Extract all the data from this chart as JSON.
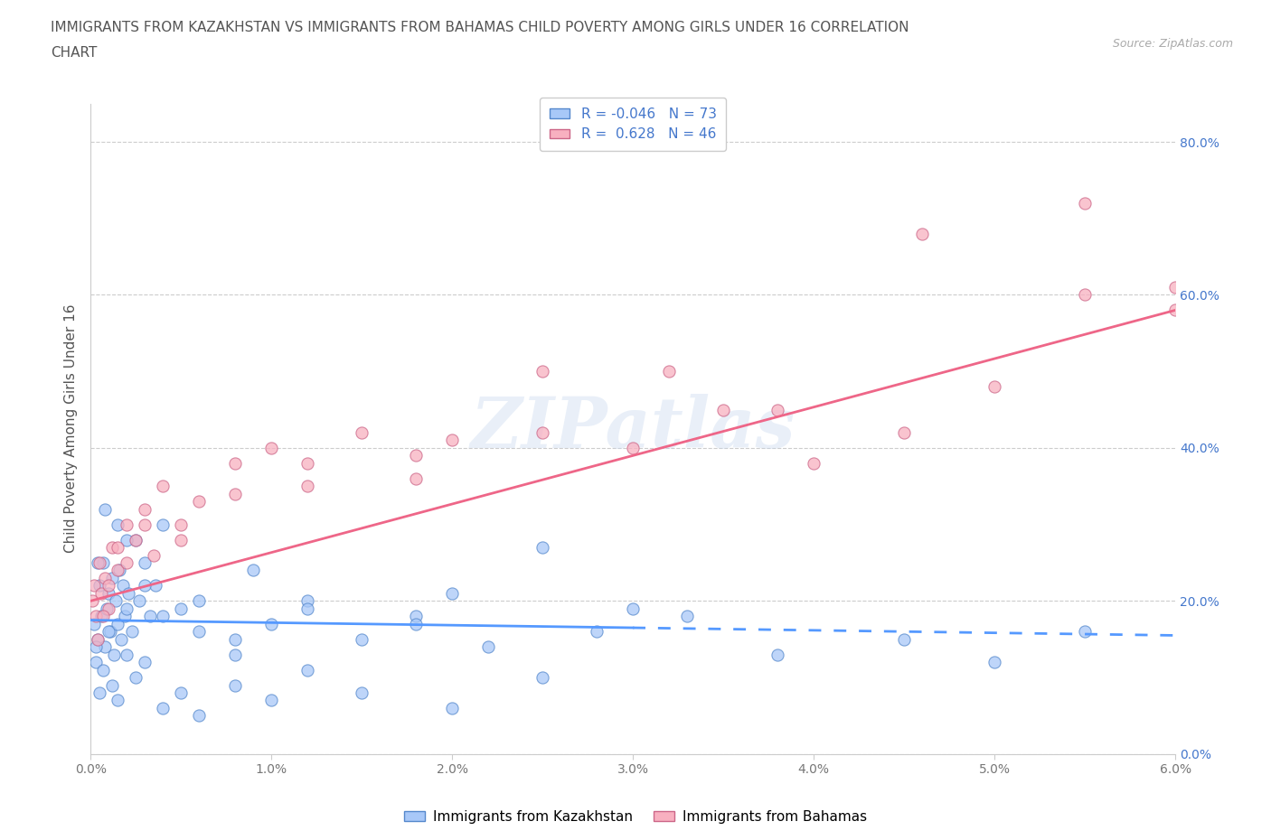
{
  "title_line1": "IMMIGRANTS FROM KAZAKHSTAN VS IMMIGRANTS FROM BAHAMAS CHILD POVERTY AMONG GIRLS UNDER 16 CORRELATION",
  "title_line2": "CHART",
  "source": "Source: ZipAtlas.com",
  "ylabel": "Child Poverty Among Girls Under 16",
  "legend_label1": "Immigrants from Kazakhstan",
  "legend_label2": "Immigrants from Bahamas",
  "R1": -0.046,
  "N1": 73,
  "R2": 0.628,
  "N2": 46,
  "color_kaz": "#a8c8f8",
  "color_kaz_edge": "#5588cc",
  "color_bah": "#f8b0c0",
  "color_bah_edge": "#cc6688",
  "line_kaz": "#5599ff",
  "line_bah": "#ee6688",
  "watermark": "ZIPatlas",
  "xlim": [
    0.0,
    0.06
  ],
  "ylim": [
    0.0,
    0.85
  ],
  "x_ticks": [
    0.0,
    0.01,
    0.02,
    0.03,
    0.04,
    0.05,
    0.06
  ],
  "x_tick_labels": [
    "0.0%",
    "1.0%",
    "2.0%",
    "3.0%",
    "4.0%",
    "5.0%",
    "6.0%"
  ],
  "y_ticks": [
    0.0,
    0.2,
    0.4,
    0.6,
    0.8
  ],
  "y_tick_labels": [
    "0.0%",
    "20.0%",
    "40.0%",
    "60.0%",
    "80.0%"
  ],
  "tick_color": "#4477cc",
  "background_color": "#ffffff",
  "grid_color": "#cccccc",
  "title_color": "#555555",
  "source_color": "#aaaaaa",
  "ylabel_color": "#555555",
  "kaz_x": [
    0.0002,
    0.0003,
    0.0004,
    0.0005,
    0.0006,
    0.0007,
    0.0008,
    0.0009,
    0.001,
    0.0011,
    0.0012,
    0.0013,
    0.0014,
    0.0015,
    0.0016,
    0.0017,
    0.0018,
    0.0019,
    0.002,
    0.0021,
    0.0023,
    0.0025,
    0.0027,
    0.003,
    0.0033,
    0.0036,
    0.004,
    0.005,
    0.006,
    0.008,
    0.009,
    0.01,
    0.012,
    0.015,
    0.018,
    0.02,
    0.025,
    0.03,
    0.0003,
    0.0005,
    0.0007,
    0.001,
    0.0012,
    0.0015,
    0.002,
    0.0025,
    0.003,
    0.004,
    0.005,
    0.006,
    0.008,
    0.01,
    0.012,
    0.015,
    0.02,
    0.025,
    0.0004,
    0.0008,
    0.0015,
    0.002,
    0.003,
    0.004,
    0.006,
    0.008,
    0.012,
    0.018,
    0.022,
    0.028,
    0.033,
    0.038,
    0.045,
    0.05,
    0.055
  ],
  "kaz_y": [
    0.17,
    0.12,
    0.15,
    0.22,
    0.18,
    0.25,
    0.14,
    0.19,
    0.21,
    0.16,
    0.23,
    0.13,
    0.2,
    0.17,
    0.24,
    0.15,
    0.22,
    0.18,
    0.19,
    0.21,
    0.16,
    0.28,
    0.2,
    0.25,
    0.18,
    0.22,
    0.3,
    0.19,
    0.16,
    0.13,
    0.24,
    0.17,
    0.2,
    0.15,
    0.18,
    0.21,
    0.27,
    0.19,
    0.14,
    0.08,
    0.11,
    0.16,
    0.09,
    0.07,
    0.13,
    0.1,
    0.12,
    0.06,
    0.08,
    0.05,
    0.09,
    0.07,
    0.11,
    0.08,
    0.06,
    0.1,
    0.25,
    0.32,
    0.3,
    0.28,
    0.22,
    0.18,
    0.2,
    0.15,
    0.19,
    0.17,
    0.14,
    0.16,
    0.18,
    0.13,
    0.15,
    0.12,
    0.16
  ],
  "bah_x": [
    0.0001,
    0.0002,
    0.0003,
    0.0005,
    0.0006,
    0.0008,
    0.001,
    0.0012,
    0.0015,
    0.002,
    0.0025,
    0.003,
    0.0035,
    0.004,
    0.005,
    0.006,
    0.008,
    0.01,
    0.012,
    0.015,
    0.018,
    0.02,
    0.025,
    0.03,
    0.035,
    0.04,
    0.045,
    0.05,
    0.055,
    0.06,
    0.0004,
    0.0007,
    0.001,
    0.0015,
    0.002,
    0.003,
    0.005,
    0.008,
    0.012,
    0.018,
    0.025,
    0.032,
    0.038,
    0.046,
    0.055,
    0.06
  ],
  "bah_y": [
    0.2,
    0.22,
    0.18,
    0.25,
    0.21,
    0.23,
    0.19,
    0.27,
    0.24,
    0.3,
    0.28,
    0.32,
    0.26,
    0.35,
    0.3,
    0.33,
    0.38,
    0.4,
    0.35,
    0.42,
    0.39,
    0.41,
    0.5,
    0.4,
    0.45,
    0.38,
    0.42,
    0.48,
    0.6,
    0.58,
    0.15,
    0.18,
    0.22,
    0.27,
    0.25,
    0.3,
    0.28,
    0.34,
    0.38,
    0.36,
    0.42,
    0.5,
    0.45,
    0.68,
    0.72,
    0.61
  ]
}
